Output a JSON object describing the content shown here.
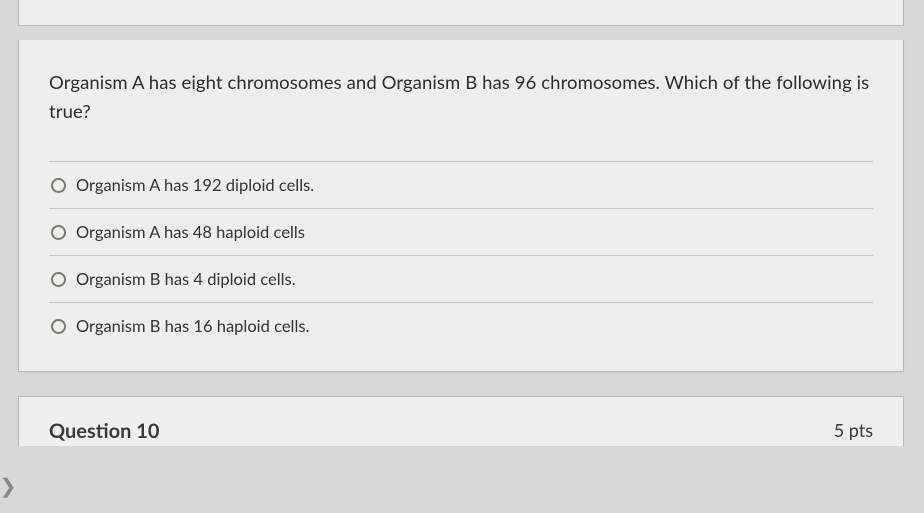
{
  "question": {
    "prompt": "Organism A has eight chromosomes and Organism B has 96 chromosomes. Which of the following is true?",
    "options": [
      {
        "label": "Organism A has 192 diploid cells."
      },
      {
        "label": "Organism A has 48 haploid cells"
      },
      {
        "label": "Organism B has 4 diploid cells."
      },
      {
        "label": "Organism B has 16 haploid cells."
      }
    ]
  },
  "next": {
    "title": "Question 10",
    "points": "5 pts"
  },
  "gutter_glyph": "❯",
  "colors": {
    "page_bg": "#d8d8d4",
    "card_bg": "#eeeeea",
    "border": "#b8b8b2",
    "divider": "#c6c6c0",
    "text": "#2c2c2a",
    "radio_border": "#7a7a74"
  }
}
